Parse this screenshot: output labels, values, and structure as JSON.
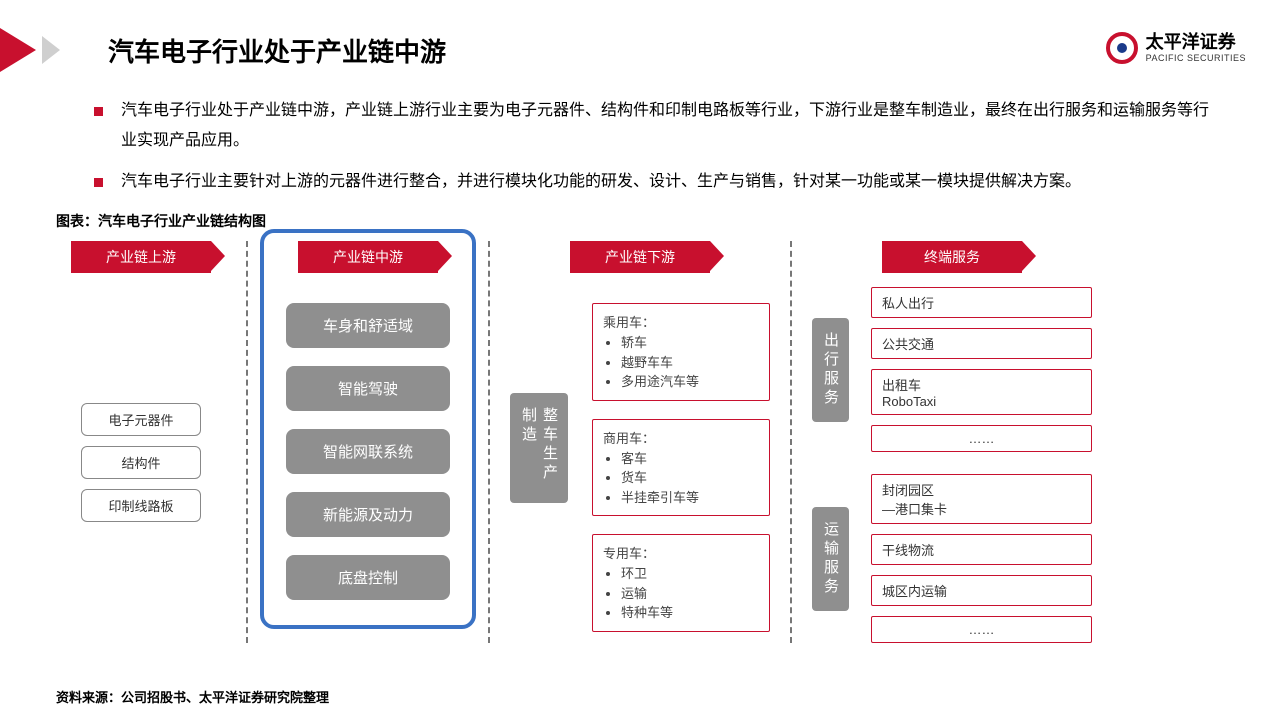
{
  "colors": {
    "brand_red": "#c8102e",
    "box_gray": "#8f8f8f",
    "outline_gray": "#888888",
    "highlight_blue": "#3a72c4",
    "text_black": "#000000",
    "background": "#ffffff"
  },
  "header": {
    "title": "汽车电子行业处于产业链中游",
    "logo_cn": "太平洋证券",
    "logo_en": "PACIFIC SECURITIES"
  },
  "bullets": [
    "汽车电子行业处于产业链中游，产业链上游行业主要为电子元器件、结构件和印制电路板等行业，下游行业是整车制造业，最终在出行服务和运输服务等行业实现产品应用。",
    "汽车电子行业主要针对上游的元器件进行整合，并进行模块化功能的研发、设计、生产与销售，针对某一功能或某一模块提供解决方案。"
  ],
  "chart_title": "图表：汽车电子行业产业链结构图",
  "upstream": {
    "header": "产业链上游",
    "items": [
      "电子元器件",
      "结构件",
      "印制线路板"
    ]
  },
  "midstream": {
    "header": "产业链中游",
    "highlighted": true,
    "items": [
      "车身和舒适域",
      "智能驾驶",
      "智能网联系统",
      "新能源及动力",
      "底盘控制"
    ]
  },
  "downstream": {
    "header": "产业链下游",
    "hub": "整车生产制造",
    "groups": [
      {
        "title": "乘用车：",
        "items": [
          "轿车",
          "越野车车",
          "多用途汽车等"
        ]
      },
      {
        "title": "商用车：",
        "items": [
          "客车",
          "货车",
          "半挂牵引车等"
        ]
      },
      {
        "title": "专用车：",
        "items": [
          "环卫",
          "运输",
          "特种车等"
        ]
      }
    ]
  },
  "terminal": {
    "header": "终端服务",
    "groups": [
      {
        "hub": "出行服务",
        "items": [
          "私人出行",
          "公共交通",
          "出租车\nRoboTaxi",
          "……"
        ]
      },
      {
        "hub": "运输服务",
        "items": [
          "封闭园区\n—港口集卡",
          "干线物流",
          "城区内运输",
          "……"
        ]
      }
    ]
  },
  "source": "资料来源：公司招股书、太平洋证券研究院整理"
}
